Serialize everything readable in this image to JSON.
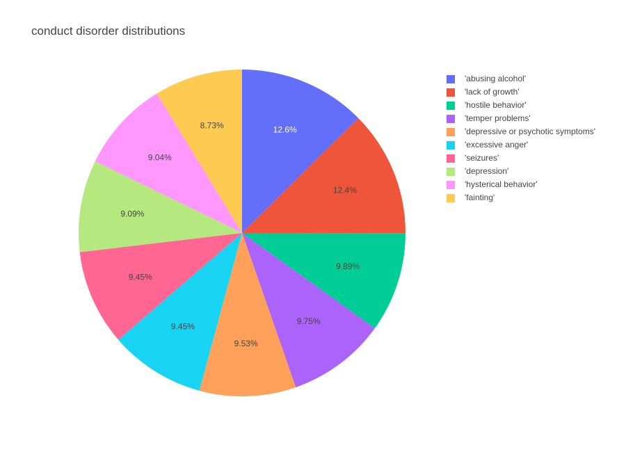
{
  "chart_data": {
    "type": "pie",
    "title": "conduct disorder distributions",
    "labels": [
      "'abusing alcohol'",
      "'lack of growth'",
      "'hostile behavior'",
      "'temper problems'",
      "'depressive or psychotic symptoms'",
      "'excessive anger'",
      "'seizures'",
      "'depression'",
      "'hysterical behavior'",
      "'fainting'"
    ],
    "values": [
      12.6,
      12.4,
      9.89,
      9.75,
      9.53,
      9.45,
      9.45,
      9.09,
      9.04,
      8.73
    ],
    "value_labels": [
      "12.6%",
      "12.4%",
      "9.89%",
      "9.75%",
      "9.53%",
      "9.45%",
      "9.45%",
      "9.09%",
      "9.04%",
      "8.73%"
    ],
    "colors": [
      "#636efa",
      "#EF553B",
      "#00cc96",
      "#ab63fa",
      "#FFA15A",
      "#19d3f3",
      "#FF6692",
      "#B6E880",
      "#FF97FF",
      "#FECB52"
    ],
    "label_colors": [
      "#ffffff",
      "#444444",
      "#444444",
      "#444444",
      "#444444",
      "#444444",
      "#444444",
      "#444444",
      "#444444",
      "#444444"
    ],
    "direction": "clockwise",
    "rotation_start": "top",
    "legend_position": "right"
  }
}
